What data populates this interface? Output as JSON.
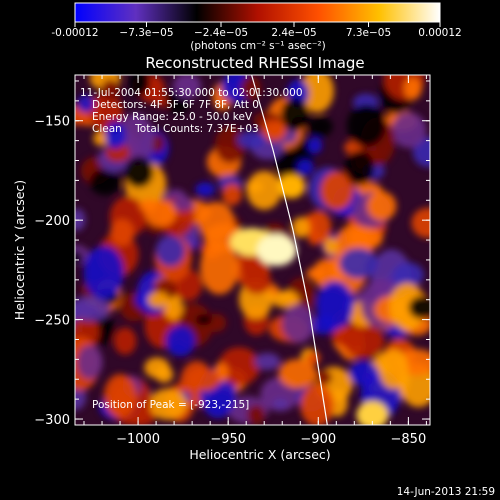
{
  "colorbar": {
    "tick_labels": [
      "-0.00012",
      "−7.3e−05",
      "−2.4e−05",
      "2.4e−05",
      "7.3e−05",
      "0.00012"
    ],
    "tick_values": [
      -0.00012,
      -7.3e-05,
      -2.4e-05,
      2.4e-05,
      7.3e-05,
      0.00012
    ],
    "range": [
      -0.00012,
      0.00012
    ],
    "units_label": "(photons cm⁻² s⁻¹ asec⁻²)",
    "palette": [
      "#0000ff",
      "#6030c0",
      "#000000",
      "#b01000",
      "#ff5000",
      "#ffc000",
      "#ffffff"
    ]
  },
  "figure": {
    "title": "Reconstructed RHESSI Image",
    "xlabel": "Heliocentric X (arcsec)",
    "ylabel": "Heliocentric Y (arcsec)",
    "xlim": [
      -1035,
      -838
    ],
    "ylim": [
      -303,
      -127
    ],
    "x_ticks": [
      -1000,
      -950,
      -900,
      -850
    ],
    "x_tick_labels": [
      "−1000",
      "−950",
      "−900",
      "−850"
    ],
    "y_ticks": [
      -150,
      -200,
      -250,
      -300
    ],
    "y_tick_labels": [
      "−150",
      "−200",
      "−250",
      "−300"
    ]
  },
  "annotations": {
    "time_range": "11-Jul-2004 01:55:30.000 to 02:01:30.000",
    "detectors": "Detectors: 4F 5F 6F 7F 8F, Att 0",
    "energy_range": "Energy Range: 25.0 - 50.0 keV",
    "clean_counts": "Clean    Total Counts: 7.37E+03",
    "peak_position": "Position of Peak = [-923,-215]"
  },
  "limb_points": [
    [
      -937,
      -127
    ],
    [
      -925,
      -165
    ],
    [
      -914,
      -205
    ],
    [
      -905,
      -245
    ],
    [
      -895,
      -303
    ]
  ],
  "footer": {
    "timestamp": "14-Jun-2013 21:59"
  }
}
